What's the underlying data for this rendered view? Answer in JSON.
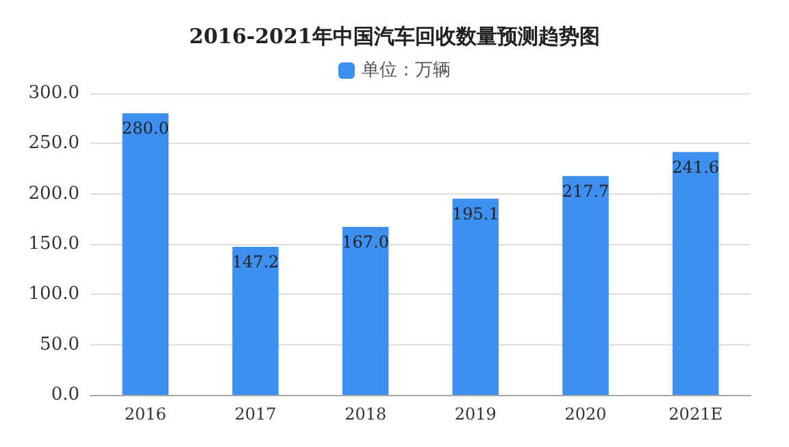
{
  "chart_data": {
    "type": "bar",
    "title": "2016-2021年中国汽车回收数量预测趋势图",
    "categories": [
      "2016",
      "2017",
      "2018",
      "2019",
      "2020",
      "2021E"
    ],
    "series": [
      {
        "name": "单位：万辆",
        "color": "#3d8ff0",
        "values": [
          280.0,
          147.2,
          167.0,
          195.1,
          217.7,
          241.6
        ],
        "value_labels": [
          "280.0",
          "147.2",
          "167.0",
          "195.1",
          "217.7",
          "241.6"
        ]
      }
    ],
    "ylim": [
      0,
      300
    ],
    "yticks": [
      {
        "value": 0,
        "label": "0.0"
      },
      {
        "value": 50,
        "label": "50.0"
      },
      {
        "value": 100,
        "label": "100.0"
      },
      {
        "value": 150,
        "label": "150.0"
      },
      {
        "value": 200,
        "label": "200.0"
      },
      {
        "value": 250,
        "label": "250.0"
      },
      {
        "value": 300,
        "label": "300.0"
      }
    ],
    "grid": "y",
    "legend": "top"
  }
}
